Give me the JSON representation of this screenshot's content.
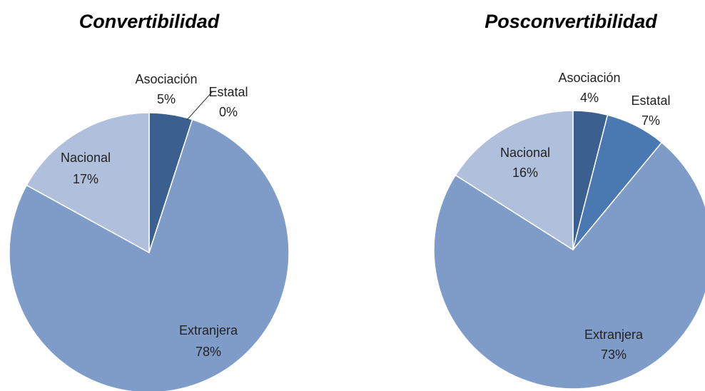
{
  "chart_data": [
    {
      "type": "pie",
      "title": "Convertibilidad",
      "categories": [
        "Asociación",
        "Estatal",
        "Extranjera",
        "Nacional"
      ],
      "values": [
        5,
        0,
        78,
        17
      ],
      "value_labels": [
        "5%",
        "0%",
        "78%",
        "17%"
      ],
      "colors": [
        "#3b5f8f",
        "#4a78b0",
        "#7f9cc8",
        "#b0c0dc"
      ]
    },
    {
      "type": "pie",
      "title": "Posconvertibilidad",
      "categories": [
        "Asociación",
        "Estatal",
        "Extranjera",
        "Nacional"
      ],
      "values": [
        4,
        7,
        73,
        16
      ],
      "value_labels": [
        "4%",
        "7%",
        "73%",
        "16%"
      ],
      "colors": [
        "#3b5f8f",
        "#4a78b0",
        "#7f9cc8",
        "#b0c0dc"
      ]
    }
  ]
}
